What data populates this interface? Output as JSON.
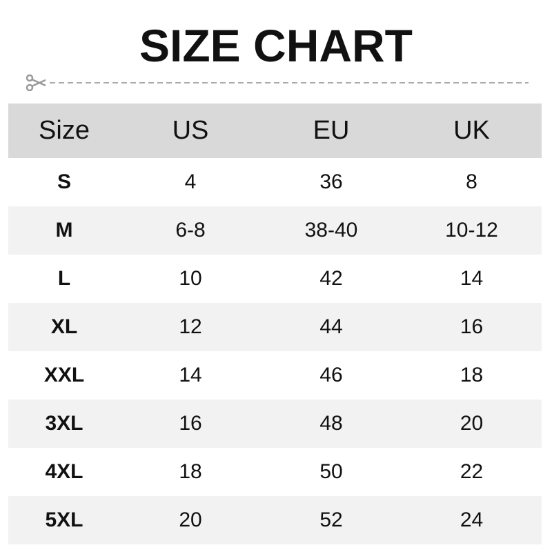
{
  "title": "SIZE CHART",
  "cut_icon": "scissors-icon",
  "colors": {
    "header_bg": "#d9d9d9",
    "alt_row_bg": "#f2f2f2",
    "cutline": "#999999"
  },
  "table": {
    "headers": [
      "Size",
      "US",
      "EU",
      "UK"
    ],
    "rows": [
      [
        "S",
        "4",
        "36",
        "8"
      ],
      [
        "M",
        "6-8",
        "38-40",
        "10-12"
      ],
      [
        "L",
        "10",
        "42",
        "14"
      ],
      [
        "XL",
        "12",
        "44",
        "16"
      ],
      [
        "XXL",
        "14",
        "46",
        "18"
      ],
      [
        "3XL",
        "16",
        "48",
        "20"
      ],
      [
        "4XL",
        "18",
        "50",
        "22"
      ],
      [
        "5XL",
        "20",
        "52",
        "24"
      ]
    ]
  }
}
